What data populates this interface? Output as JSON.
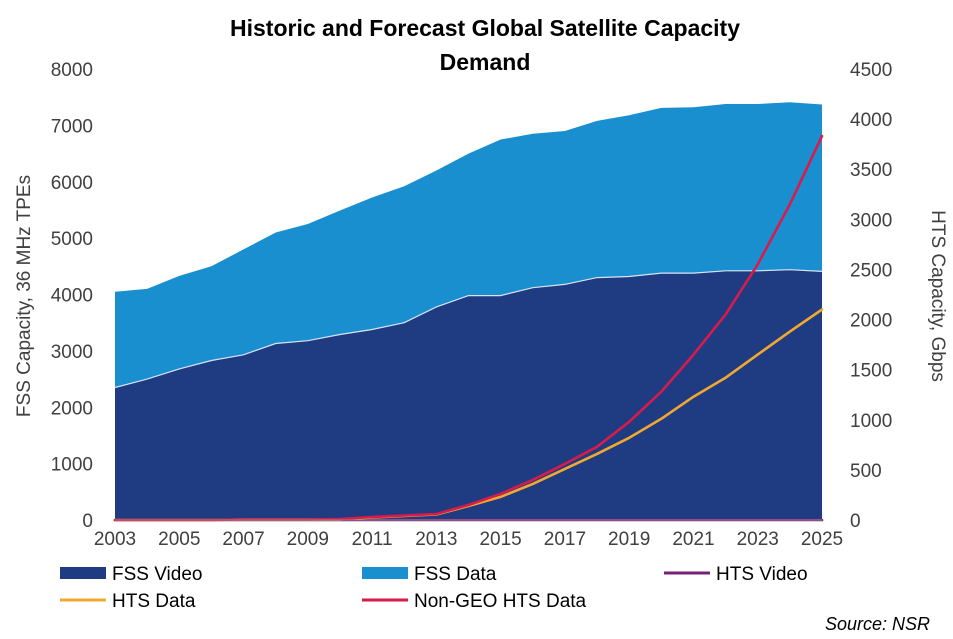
{
  "chart_data": {
    "type": "area",
    "title_line1": "Historic and Forecast Global Satellite Capacity",
    "title_line2": "Demand",
    "ylabel_left": "FSS Capacity, 36 MHz TPEs",
    "ylabel_right": "HTS Capacity, Gbps",
    "source": "Source: NSR",
    "x": [
      2003,
      2004,
      2005,
      2006,
      2007,
      2008,
      2009,
      2010,
      2011,
      2012,
      2013,
      2014,
      2015,
      2016,
      2017,
      2018,
      2019,
      2020,
      2021,
      2022,
      2023,
      2024,
      2025
    ],
    "x_ticks": [
      "2003",
      "2005",
      "2007",
      "2009",
      "2011",
      "2013",
      "2015",
      "2017",
      "2019",
      "2021",
      "2023",
      "2025"
    ],
    "y_left_ticks": [
      "0",
      "1000",
      "2000",
      "3000",
      "4000",
      "5000",
      "6000",
      "7000",
      "8000"
    ],
    "y_right_ticks": [
      "0",
      "500",
      "1000",
      "1500",
      "2000",
      "2500",
      "3000",
      "3500",
      "4000",
      "4500"
    ],
    "ylim_left": [
      0,
      8000
    ],
    "ylim_right": [
      0,
      4500
    ],
    "grid": false,
    "legend_position": "bottom",
    "series": [
      {
        "name": "FSS Video",
        "axis": "left",
        "kind": "stacked-area",
        "color": "#1f3b82",
        "values": [
          2350,
          2500,
          2680,
          2830,
          2930,
          3130,
          3180,
          3290,
          3380,
          3500,
          3780,
          3980,
          3980,
          4120,
          4180,
          4300,
          4320,
          4380,
          4380,
          4420,
          4420,
          4440,
          4410
        ]
      },
      {
        "name": "FSS Data",
        "axis": "left",
        "kind": "stacked-area",
        "color": "#1a8fd0",
        "values": [
          1700,
          1600,
          1650,
          1670,
          1870,
          1970,
          2070,
          2200,
          2340,
          2420,
          2420,
          2520,
          2770,
          2730,
          2720,
          2780,
          2860,
          2930,
          2940,
          2960,
          2960,
          2970,
          2960
        ]
      },
      {
        "name": "HTS Video",
        "axis": "right",
        "kind": "line",
        "color": "#7a1f7a",
        "values": [
          0,
          0,
          0,
          0,
          0,
          0,
          0,
          0,
          0,
          0,
          0,
          0,
          0,
          0,
          0,
          0,
          0,
          0,
          0,
          0,
          0,
          0,
          0
        ]
      },
      {
        "name": "HTS Data",
        "axis": "right",
        "kind": "line",
        "color": "#f0a830",
        "values": [
          0,
          0,
          0,
          0,
          5,
          5,
          5,
          5,
          25,
          40,
          55,
          140,
          230,
          360,
          510,
          660,
          820,
          1010,
          1230,
          1420,
          1650,
          1880,
          2100
        ]
      },
      {
        "name": "Non-GEO HTS Data",
        "axis": "right",
        "kind": "line",
        "color": "#d81b4c",
        "values": [
          0,
          0,
          0,
          0,
          5,
          5,
          5,
          10,
          30,
          45,
          60,
          150,
          260,
          400,
          560,
          730,
          980,
          1280,
          1650,
          2050,
          2550,
          3150,
          3830
        ]
      }
    ]
  }
}
